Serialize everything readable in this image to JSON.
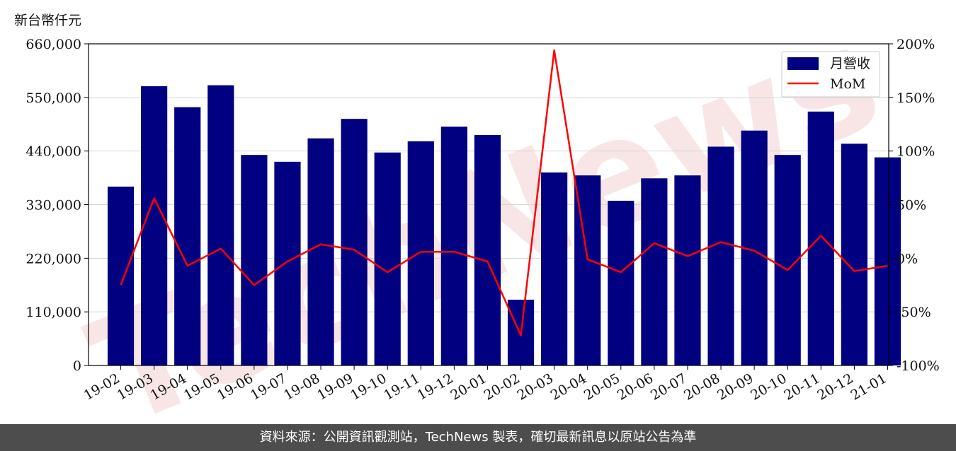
{
  "unit_label": "新台幣仟元",
  "footer_text": "資料來源：公開資訊觀測站，TechNews 製表，確切最新訊息以原站公告為準",
  "watermark_text": "TechNews",
  "chart_data": {
    "type": "bar",
    "title": "",
    "xlabel": "",
    "ylabel": "",
    "categories": [
      "19-02",
      "19-03",
      "19-04",
      "19-05",
      "19-06",
      "19-07",
      "19-08",
      "19-09",
      "19-10",
      "19-11",
      "19-12",
      "20-01",
      "20-02",
      "20-03",
      "20-04",
      "20-05",
      "20-06",
      "20-07",
      "20-08",
      "20-09",
      "20-10",
      "20-11",
      "20-12",
      "21-01"
    ],
    "series": [
      {
        "name": "月營收",
        "type": "bar",
        "axis": "left",
        "color": "#000080",
        "values": [
          367000,
          573000,
          530000,
          575000,
          432000,
          418000,
          466000,
          506000,
          437000,
          460000,
          490000,
          473000,
          135000,
          396000,
          390000,
          338000,
          384000,
          390000,
          449000,
          482000,
          432000,
          521000,
          455000,
          427000
        ]
      },
      {
        "name": "MoM",
        "type": "line",
        "axis": "right",
        "color": "#ff0000",
        "values": [
          -25,
          56,
          -7,
          9,
          -25,
          -3,
          13,
          8,
          -13,
          6,
          6,
          -3,
          -72,
          194,
          -1,
          -13,
          14,
          2,
          15,
          7,
          -11,
          21,
          -12,
          -7
        ]
      }
    ],
    "ylim_left": [
      0,
      660000
    ],
    "yticks_left": [
      "0",
      "110,000",
      "220,000",
      "330,000",
      "440,000",
      "550,000",
      "660,000"
    ],
    "ylim_right": [
      -100,
      200
    ],
    "yticks_right": [
      "-100%",
      "-50%",
      "0%",
      "50%",
      "100%",
      "150%",
      "200%"
    ],
    "grid": true,
    "legend_position": "top-right"
  }
}
